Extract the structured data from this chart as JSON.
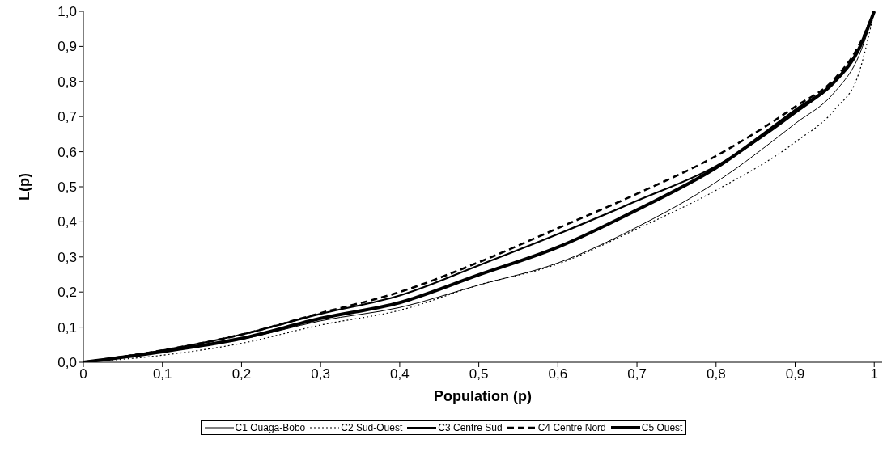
{
  "chart_data": {
    "type": "line",
    "xlabel": "Population (p)",
    "ylabel": "L(p)",
    "x": [
      0,
      0.1,
      0.2,
      0.3,
      0.4,
      0.5,
      0.6,
      0.7,
      0.8,
      0.9,
      0.95,
      0.98,
      1
    ],
    "series": [
      {
        "name": "C1 Ouaga-Bobo",
        "color": "#000000",
        "line_style": "solid",
        "values": [
          0,
          0.03,
          0.065,
          0.118,
          0.156,
          0.22,
          0.283,
          0.385,
          0.513,
          0.68,
          0.77,
          0.87,
          1
        ]
      },
      {
        "name": "C2 Sud-Ouest",
        "color": "#000000",
        "line_style": "dotted",
        "values": [
          0,
          0.02,
          0.054,
          0.106,
          0.148,
          0.22,
          0.28,
          0.38,
          0.49,
          0.627,
          0.72,
          0.82,
          1
        ]
      },
      {
        "name": "C3 Centre Sud",
        "color": "#000000",
        "line_style": "solid",
        "values": [
          0,
          0.034,
          0.079,
          0.138,
          0.19,
          0.276,
          0.365,
          0.46,
          0.559,
          0.71,
          0.8,
          0.89,
          1
        ]
      },
      {
        "name": "C4 Centre Nord",
        "color": "#000000",
        "line_style": "dashed",
        "values": [
          0,
          0.034,
          0.079,
          0.14,
          0.2,
          0.285,
          0.382,
          0.48,
          0.588,
          0.728,
          0.808,
          0.9,
          1
        ]
      },
      {
        "name": "C5 Ouest",
        "color": "#000000",
        "line_style": "solid",
        "values": [
          0,
          0.03,
          0.068,
          0.125,
          0.17,
          0.249,
          0.328,
          0.434,
          0.554,
          0.717,
          0.8,
          0.89,
          1
        ]
      }
    ],
    "xlim": [
      0,
      1.01
    ],
    "xticks": [
      0,
      {
        "value": 0.1,
        "label": "0,1"
      },
      {
        "value": 0.2,
        "label": "0,2"
      },
      {
        "value": 0.3,
        "label": "0,3"
      },
      {
        "value": 0.4,
        "label": "0,4"
      },
      {
        "value": 0.5,
        "label": "0,5"
      },
      {
        "value": 0.6,
        "label": "0,6"
      },
      {
        "value": 0.7,
        "label": "0,7"
      },
      {
        "value": 0.8,
        "label": "0,8"
      },
      {
        "value": 0.9,
        "label": "0,9"
      },
      1
    ],
    "ylim": [
      0,
      1
    ],
    "yticks": [
      {
        "value": 0,
        "label": "0,0"
      },
      {
        "value": 0.1,
        "label": "0,1"
      },
      {
        "value": 0.2,
        "label": "0,2"
      },
      {
        "value": 0.3,
        "label": "0,3"
      },
      {
        "value": 0.4,
        "label": "0,4"
      },
      {
        "value": 0.5,
        "label": "0,5"
      },
      {
        "value": 0.6,
        "label": "0,6"
      },
      {
        "value": 0.7,
        "label": "0,7"
      },
      {
        "value": 0.8,
        "label": "0,8"
      },
      {
        "value": 0.9,
        "label": "0,9"
      },
      {
        "value": 1,
        "label": "1,0"
      }
    ],
    "grid": false,
    "legend": "bottom",
    "marker": "none"
  }
}
